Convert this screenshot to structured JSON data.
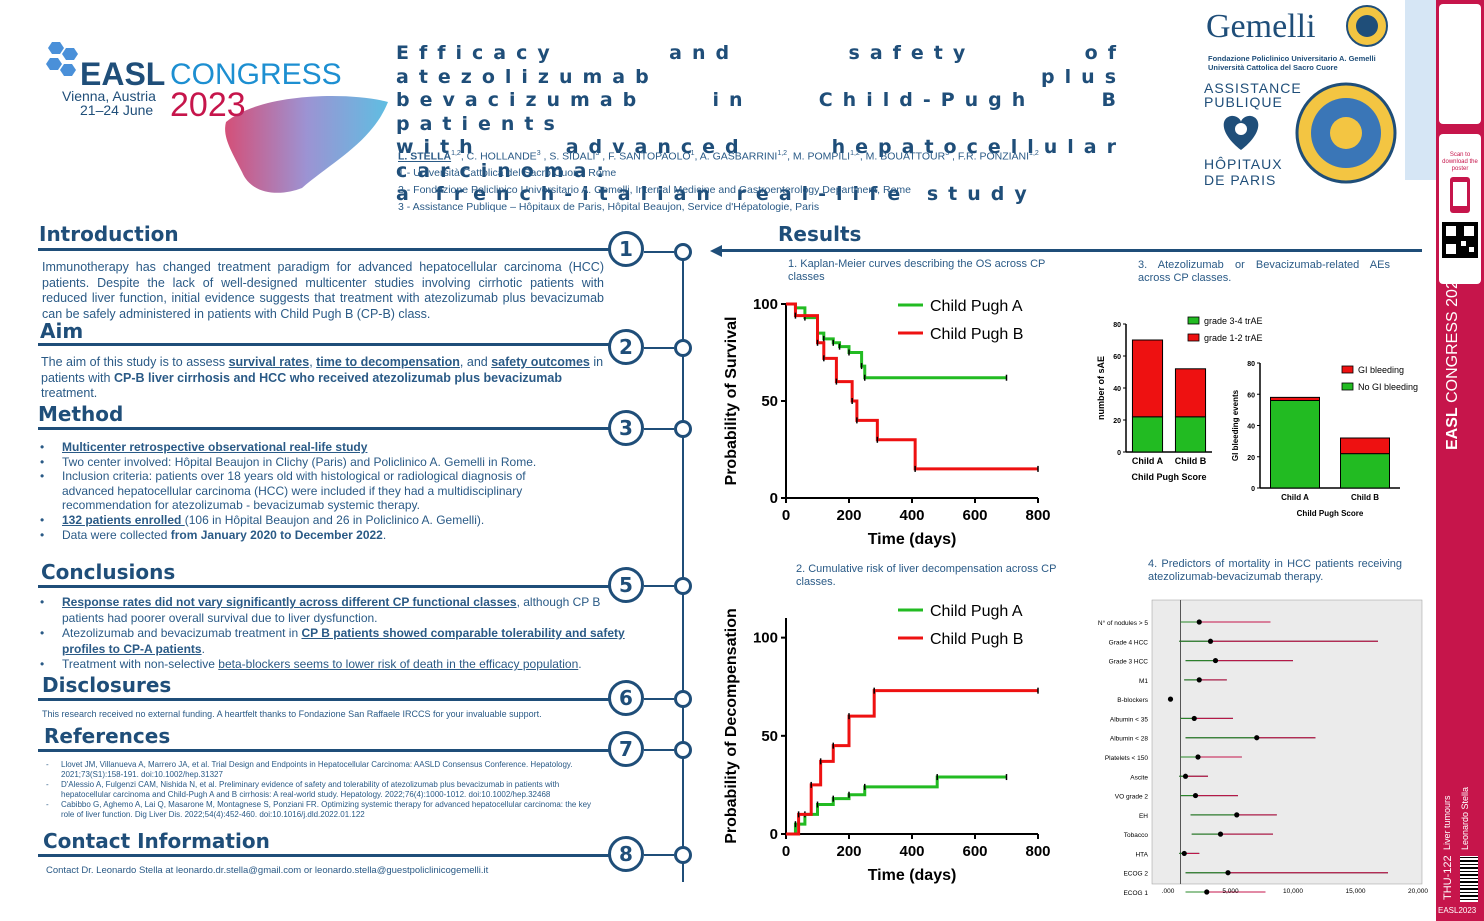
{
  "congress": {
    "name": "EASL",
    "word": "CONGRESS",
    "city": "Vienna, Austria",
    "dates": "21–24 June",
    "year": "2023"
  },
  "title_lines": [
    "Efficacy and safety of atezolizumab plus",
    "bevacizumab in Child-Pugh B patients",
    "with advanced hepatocellular carcinoma:",
    "a french-italian real-life study"
  ],
  "authors": {
    "lead": "L. STELLA",
    "lead_sup": "1,2",
    "others": [
      {
        "name": ", C. HOLLANDE",
        "sup": "3"
      },
      {
        "name": " , S. SIDALI",
        "sup": "3"
      },
      {
        "name": " , F. SANTOPAOLO",
        "sup": "1"
      },
      {
        "name": ", A. GASBARRINI",
        "sup": "1,2"
      },
      {
        "name": ", M. POMPILI",
        "sup": "1,2"
      },
      {
        "name": ", M. BOUATTOUR",
        "sup": "3"
      },
      {
        "name": " , F.R. PONZIANI",
        "sup": "1,2"
      }
    ],
    "affiliations": [
      "1 - Università Cattolica del Sacro Cuore, Rome",
      "2 - Fondazione Policlinico Universitario A. Gemelli, Internal Medicine and Gastroenterology Department, Rome",
      "3 - Assistance Publique – Hôpitaux de Paris, Hôpital Beaujon, Service d'Hépatologie, Paris"
    ]
  },
  "logos": {
    "gemelli": "Gemelli",
    "gemelli_sub1": "Fondazione Policlinico Universitario A. Gemelli",
    "gemelli_sub2": "Università Cattolica del Sacro Cuore",
    "aphp_1": "ASSISTANCE",
    "aphp_2": "PUBLIQUE",
    "aphp_3": "HÔPITAUX",
    "aphp_4": "DE PARIS"
  },
  "sections": {
    "introduction": {
      "title": "Introduction",
      "num": "1",
      "text": "Immunotherapy has changed treatment paradigm for advanced hepatocellular carcinoma (HCC) patients. Despite the lack of well-designed multicenter studies involving cirrhotic patients with reduced liver function, initial evidence suggests that treatment with atezolizumab plus bevacizumab can be safely administered in patients with Child Pugh B (CP-B) class."
    },
    "aim": {
      "title": "Aim",
      "num": "2",
      "t1": "The aim of this study is to assess ",
      "l1": "survival rates",
      "t2": ", ",
      "l2": "time to decompensation",
      "t3": ", and ",
      "l3": "safety outcomes",
      "t4": " in patients with ",
      "b1": "CP-B liver cirrhosis and HCC who received atezolizumab plus bevacizumab",
      "t5": " treatment."
    },
    "method": {
      "title": "Method",
      "num": "3",
      "b1": "Multicenter retrospective observational real-life study",
      "b2": "Two center involved: Hôpital Beaujon in Clichy (Paris) and Policlinico A. Gemelli in Rome.",
      "b3": "Inclusion criteria: patients over 18 years old with histological or radiological diagnosis of advanced hepatocellular carcinoma (HCC) were included if they had a multidisciplinary recommendation for atezolizumab - bevacizumab systemic therapy.",
      "b4a": "132 patients enrolled ",
      "b4b": "(106 in Hôpital Beaujon and 26 in Policlinico A. Gemelli).",
      "b5a": "Data were collected ",
      "b5b": "from January 2020 to December 2022",
      "b5c": "."
    },
    "conclusions": {
      "title": "Conclusions",
      "num": "5",
      "c1a": "Response rates did not vary significantly across different CP functional classes",
      "c1b": ", although CP B patients had poorer overall survival due to liver dysfunction.",
      "c2a": "Atezolizumab and bevacizumab treatment in ",
      "c2b": "CP B patients showed comparable tolerability and safety profiles to CP-A patients",
      "c2c": ".",
      "c3a": "Treatment with non-selective ",
      "c3b": "beta-blockers seems to lower risk of death in the efficacy population",
      "c3c": "."
    },
    "disclosures": {
      "title": "Disclosures",
      "num": "6",
      "text": "This research received no external funding. A heartfelt thanks to Fondazione San Raffaele IRCCS for your invaluable support."
    },
    "references": {
      "title": "References",
      "num": "7",
      "items": [
        "Llovet JM, Villanueva A, Marrero JA, et al. Trial Design and Endpoints in Hepatocellular Carcinoma: AASLD Consensus Conference. Hepatology. 2021;73(S1):158-191. doi:10.1002/hep.31327",
        "D'Alessio A, Fulgenzi CAM, Nishida N, et al. Preliminary evidence of safety and tolerability of atezolizumab plus bevacizumab in patients with hepatocellular carcinoma and Child-Pugh A and B cirrhosis: A real-world study. Hepatology. 2022;76(4):1000-1012. doi:10.1002/hep.32468",
        "Cabibbo G, Aghemo A, Lai Q, Masarone M, Montagnese S, Ponziani FR. Optimizing systemic therapy for advanced hepatocellular carcinoma: the key role of liver function. Dig Liver Dis. 2022;54(4):452-460. doi:10.1016/j.dld.2022.01.122"
      ]
    },
    "contact": {
      "title": "Contact Information",
      "num": "8",
      "text": "Contact Dr. Leonardo Stella at leonardo.dr.stella@gmail.com or leonardo.stella@guestpoliclinicogemelli.it"
    },
    "results": {
      "title": "Results"
    }
  },
  "chart_data": [
    {
      "type": "line",
      "caption": "1. Kaplan-Meier curves describing the OS across CP classes",
      "xlabel": "Time (days)",
      "ylabel": "Probability of Survival",
      "xlim": [
        0,
        800
      ],
      "ylim": [
        0,
        100
      ],
      "xticks": [
        "0",
        "200",
        "400",
        "600",
        "800"
      ],
      "yticks": [
        "0",
        "50",
        "100"
      ],
      "series": [
        {
          "name": "Child Pugh A",
          "color": "#22bb22",
          "x": [
            0,
            30,
            60,
            100,
            120,
            150,
            170,
            200,
            240,
            250,
            700
          ],
          "y": [
            100,
            98,
            93,
            85,
            82,
            80,
            78,
            75,
            68,
            62,
            62
          ]
        },
        {
          "name": "Child Pugh B",
          "color": "#ee1111",
          "x": [
            0,
            30,
            100,
            120,
            160,
            210,
            225,
            290,
            410,
            800
          ],
          "y": [
            100,
            94,
            80,
            72,
            60,
            50,
            40,
            30,
            15,
            15
          ]
        }
      ]
    },
    {
      "type": "line",
      "caption": "2. Cumulative risk of liver decompensation across CP classes.",
      "xlabel": "Time (days)",
      "ylabel": "Probability of Decompensation",
      "xlim": [
        0,
        800
      ],
      "ylim": [
        0,
        110
      ],
      "xticks": [
        "0",
        "200",
        "400",
        "600",
        "800"
      ],
      "yticks": [
        "0",
        "50",
        "100"
      ],
      "series": [
        {
          "name": "Child Pugh A",
          "color": "#22bb22",
          "x": [
            0,
            30,
            60,
            100,
            150,
            200,
            250,
            480,
            700
          ],
          "y": [
            0,
            5,
            10,
            15,
            18,
            20,
            24,
            29,
            29
          ]
        },
        {
          "name": "Child Pugh B",
          "color": "#ee1111",
          "x": [
            0,
            40,
            80,
            110,
            150,
            200,
            280,
            800
          ],
          "y": [
            0,
            10,
            25,
            37,
            45,
            60,
            73,
            73
          ]
        }
      ]
    },
    {
      "type": "bar",
      "caption": "3. Atezolizumab or Bevacizumab-related AEs across CP classes.",
      "ylabel": "number of sAE",
      "xlabel": "Child Pugh Score",
      "categories": [
        "Child A",
        "Child B"
      ],
      "ylim": [
        0,
        80
      ],
      "yticks": [
        "0",
        "20",
        "40",
        "60",
        "80"
      ],
      "series": [
        {
          "name": "grade 3-4 trAE",
          "color": "#22bb22",
          "values": [
            22,
            22
          ]
        },
        {
          "name": "grade 1-2 trAE",
          "color": "#ee1111",
          "values": [
            48,
            30
          ]
        }
      ]
    },
    {
      "type": "bar",
      "ylabel": "GI bleeding events",
      "xlabel": "Child Pugh Score",
      "categories": [
        "Child A",
        "Child B"
      ],
      "ylim": [
        0,
        80
      ],
      "yticks": [
        "0",
        "20",
        "40",
        "60",
        "80"
      ],
      "series": [
        {
          "name": "No GI bleeding",
          "color": "#22bb22",
          "values": [
            56,
            22
          ]
        },
        {
          "name": "GI bleeding",
          "color": "#ee1111",
          "values": [
            2,
            10
          ]
        }
      ]
    },
    {
      "type": "scatter",
      "caption": "4. Predictors of mortality in HCC patients receiving atezolizumab-bevacizumab therapy.",
      "xticks": [
        ".000",
        "5,000",
        "10,000",
        "15,000",
        "20,000"
      ],
      "categories": [
        "N° of nodules > 5",
        "Grade 4 HCC",
        "Grade 3 HCC",
        "M1",
        "B-blockers",
        "Albumin < 35",
        "Albumin < 28",
        "Platelets < 150",
        "Ascite",
        "VO grade 2",
        "EH",
        "Tobacco",
        "HTA",
        "ECOG 2",
        "ECOG 1"
      ],
      "estimate": [
        2.5,
        3.4,
        3.8,
        2.5,
        0.2,
        2.1,
        7.1,
        2.4,
        1.4,
        2.2,
        5.5,
        4.2,
        1.3,
        4.8,
        3.1
      ],
      "lower": [
        1.0,
        0.9,
        1.4,
        1.3,
        0.1,
        1.0,
        1.4,
        1.0,
        0.9,
        1.0,
        1.8,
        1.9,
        0.9,
        1.4,
        1.4
      ],
      "upper": [
        8.2,
        16.8,
        10.0,
        4.7,
        0.4,
        5.2,
        11.8,
        5.9,
        3.2,
        5.6,
        8.7,
        8.4,
        2.5,
        17.6,
        7.8
      ]
    }
  ],
  "sidebar": {
    "congress": "EASL",
    "congress_word": "CONGRESS",
    "year": "2023",
    "topic": "Liver tumours",
    "author": "Leonardo Stella",
    "code": "THU-122",
    "foot": "EASL2023",
    "scan": "Scan to download the poster"
  }
}
